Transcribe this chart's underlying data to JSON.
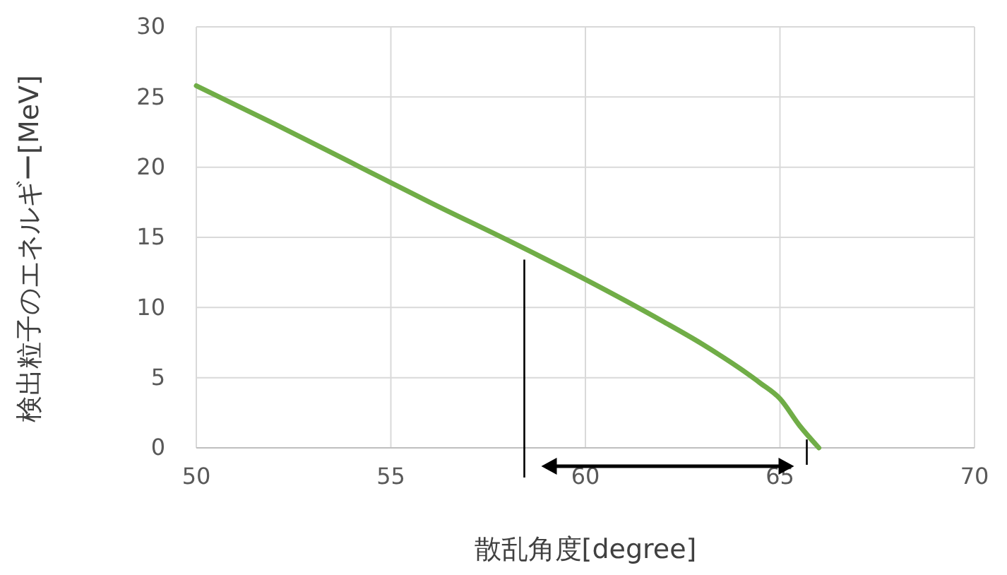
{
  "chart_data": {
    "type": "line",
    "xlabel": "散乱角度[degree]",
    "ylabel": "検出粒子のエネルギー[MeV]",
    "xlim": [
      50,
      70
    ],
    "xticks": [
      50,
      55,
      60,
      65,
      70
    ],
    "ylim": [
      0,
      30
    ],
    "yticks": [
      0,
      5,
      10,
      15,
      20,
      25,
      30
    ],
    "grid": true,
    "series": [
      {
        "color": "#70ad47",
        "x": [
          50,
          52,
          54,
          55,
          56,
          58,
          60,
          62,
          63,
          64,
          64.5,
          65,
          65.5,
          66
        ],
        "values": [
          25.8,
          23.1,
          20.3,
          18.9,
          17.5,
          14.8,
          12.0,
          9.0,
          7.4,
          5.6,
          4.6,
          3.5,
          1.6,
          0
        ]
      }
    ]
  }
}
